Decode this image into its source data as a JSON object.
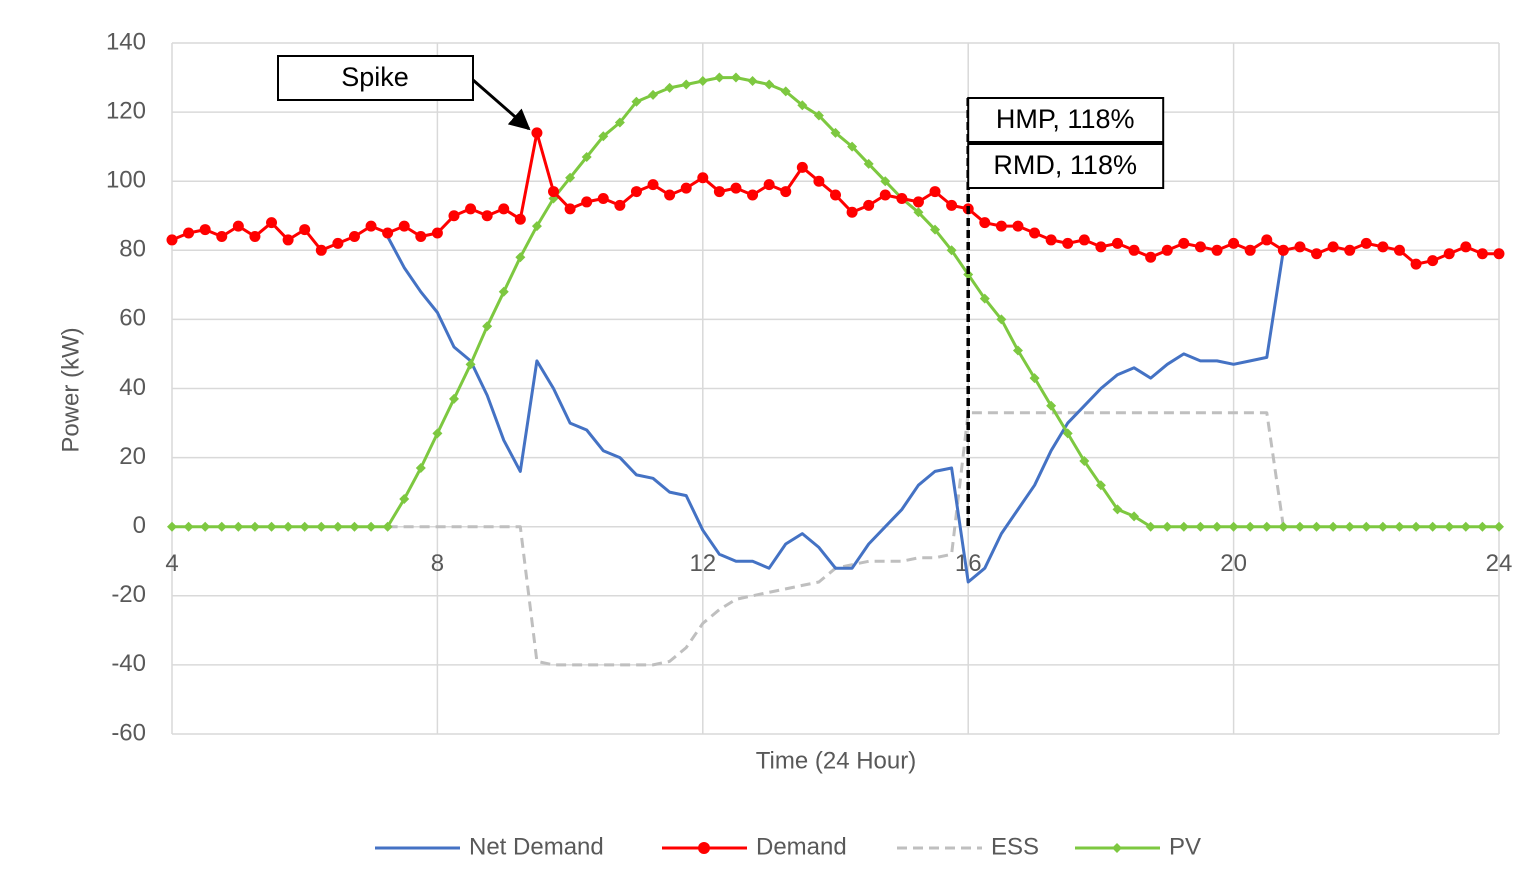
{
  "chart_data": {
    "type": "line",
    "y_label": "Power (kW)",
    "x_label": "Time (24 Hour)",
    "xlim": [
      4,
      24
    ],
    "xticks": [
      4,
      8,
      12,
      16,
      20,
      24
    ],
    "ylim": [
      -60,
      140
    ],
    "yticks": [
      -60,
      -40,
      -20,
      0,
      20,
      40,
      60,
      80,
      100,
      120,
      140
    ],
    "grid": true,
    "legend": "bottom",
    "x": [
      4,
      4.25,
      4.5,
      4.75,
      5,
      5.25,
      5.5,
      5.75,
      6,
      6.25,
      6.5,
      6.75,
      7,
      7.25,
      7.5,
      7.75,
      8,
      8.25,
      8.5,
      8.75,
      9,
      9.25,
      9.5,
      9.75,
      10,
      10.25,
      10.5,
      10.75,
      11,
      11.25,
      11.5,
      11.75,
      12,
      12.25,
      12.5,
      12.75,
      13,
      13.25,
      13.5,
      13.75,
      14,
      14.25,
      14.5,
      14.75,
      15,
      15.25,
      15.5,
      15.75,
      16,
      16.25,
      16.5,
      16.75,
      17,
      17.25,
      17.5,
      17.75,
      18,
      18.25,
      18.5,
      18.75,
      19,
      19.25,
      19.5,
      19.75,
      20,
      20.25,
      20.5,
      20.75,
      21,
      21.25,
      21.5,
      21.75,
      22,
      22.25,
      22.5,
      22.75,
      23,
      23.25,
      23.5,
      23.75,
      24
    ],
    "series": [
      {
        "name": "Net Demand",
        "color": "#4472c4",
        "dash": false,
        "marker": "none",
        "values": [
          null,
          null,
          null,
          null,
          null,
          null,
          null,
          null,
          null,
          null,
          null,
          null,
          null,
          84,
          75,
          68,
          62,
          52,
          48,
          38,
          25,
          16,
          48,
          40,
          30,
          28,
          22,
          20,
          15,
          14,
          10,
          9,
          -1,
          -8,
          -10,
          -10,
          -12,
          -5,
          -2,
          -6,
          -12,
          -12,
          -5,
          0,
          5,
          12,
          16,
          17,
          -16,
          -12,
          -2,
          5,
          12,
          22,
          30,
          35,
          40,
          44,
          46,
          43,
          47,
          50,
          48,
          48,
          47,
          48,
          49,
          80,
          null,
          null,
          null,
          null,
          null,
          null,
          null,
          null,
          null,
          null,
          null,
          null,
          null
        ]
      },
      {
        "name": "Demand",
        "color": "#ff0000",
        "dash": false,
        "marker": "circle",
        "values": [
          83,
          85,
          86,
          84,
          87,
          84,
          88,
          83,
          86,
          80,
          82,
          84,
          87,
          85,
          87,
          84,
          85,
          90,
          92,
          90,
          92,
          89,
          114,
          97,
          92,
          94,
          95,
          93,
          97,
          99,
          96,
          98,
          101,
          97,
          98,
          96,
          99,
          97,
          104,
          100,
          96,
          91,
          93,
          96,
          95,
          94,
          97,
          93,
          92,
          88,
          87,
          87,
          85,
          83,
          82,
          83,
          81,
          82,
          80,
          78,
          80,
          82,
          81,
          80,
          82,
          80,
          83,
          80,
          81,
          79,
          81,
          80,
          82,
          81,
          80,
          76,
          77,
          79,
          81,
          79,
          79
        ]
      },
      {
        "name": "ESS",
        "color": "#bfbfbf",
        "dash": true,
        "marker": "none",
        "values": [
          null,
          null,
          null,
          null,
          null,
          null,
          null,
          null,
          null,
          null,
          null,
          null,
          null,
          0,
          0,
          0,
          0,
          0,
          0,
          0,
          0,
          0,
          -39,
          -40,
          -40,
          -40,
          -40,
          -40,
          -40,
          -40,
          -39,
          -35,
          -28,
          -24,
          -21,
          -20,
          -19,
          -18,
          -17,
          -16,
          -12,
          -11,
          -10,
          -10,
          -10,
          -9,
          -9,
          -8,
          33,
          33,
          33,
          33,
          33,
          33,
          33,
          33,
          33,
          33,
          33,
          33,
          33,
          33,
          33,
          33,
          33,
          33,
          33,
          0,
          null,
          null,
          null,
          null,
          null,
          null,
          null,
          null,
          null,
          null,
          null,
          null,
          null
        ]
      },
      {
        "name": "PV",
        "color": "#7dc840",
        "dash": false,
        "marker": "diamond",
        "values": [
          0,
          0,
          0,
          0,
          0,
          0,
          0,
          0,
          0,
          0,
          0,
          0,
          0,
          0,
          8,
          17,
          27,
          37,
          47,
          58,
          68,
          78,
          87,
          95,
          101,
          107,
          113,
          117,
          123,
          125,
          127,
          128,
          129,
          130,
          130,
          129,
          128,
          126,
          122,
          119,
          114,
          110,
          105,
          100,
          95,
          91,
          86,
          80,
          73,
          66,
          60,
          51,
          43,
          35,
          27,
          19,
          12,
          5,
          3,
          0,
          0,
          0,
          0,
          0,
          0,
          0,
          0,
          0,
          0,
          0,
          0,
          0,
          0,
          0,
          0,
          0,
          0,
          0,
          0,
          0,
          0
        ]
      }
    ],
    "annotations": [
      {
        "text": "Spike",
        "x": 9.5,
        "y": 114
      },
      {
        "text": "HMP, 118%",
        "x": 16
      },
      {
        "text": "RMD, 118%",
        "x": 16
      }
    ]
  }
}
